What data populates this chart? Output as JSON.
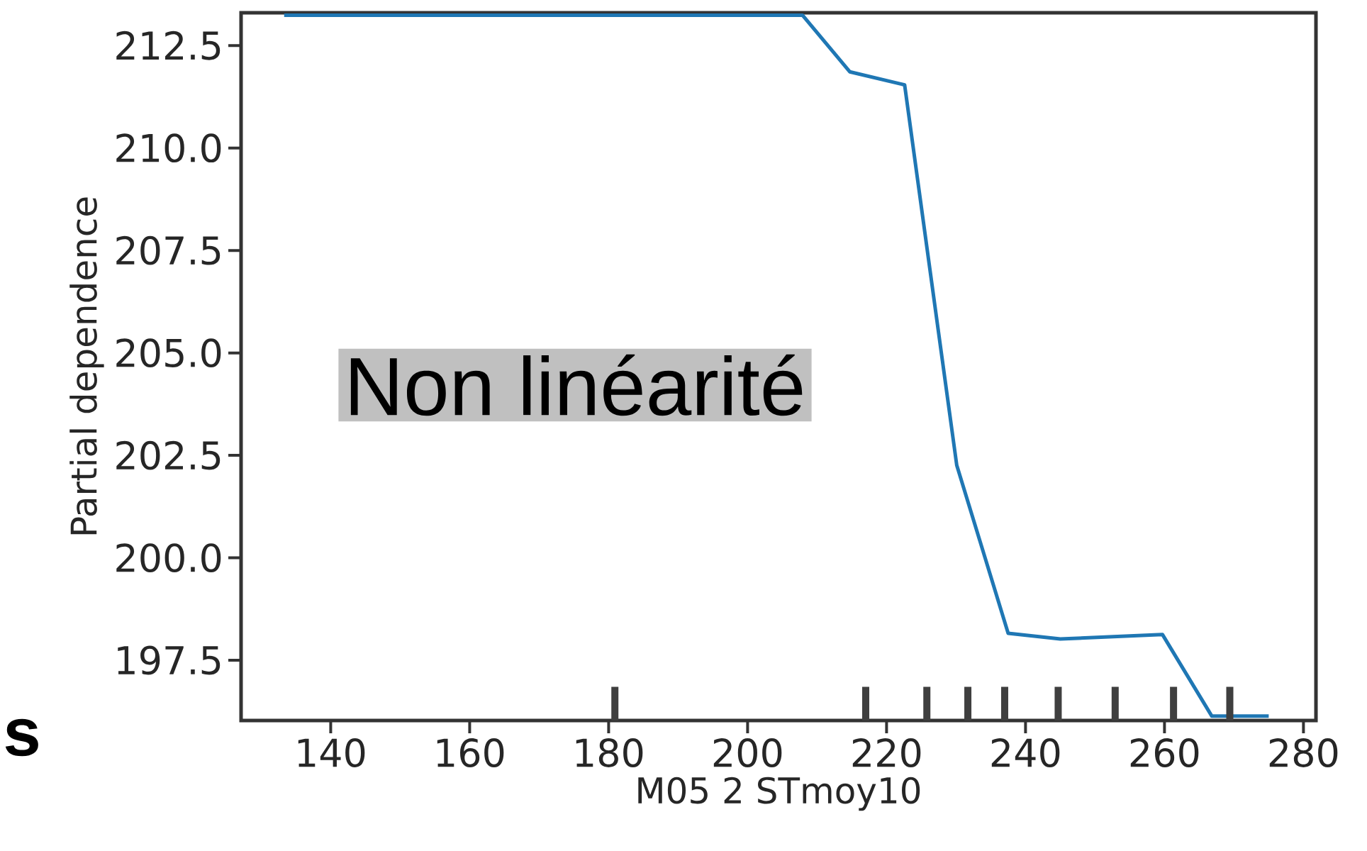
{
  "chart_data": {
    "type": "line",
    "xlabel": "M05 2 STmoy10",
    "ylabel": "Partial dependence",
    "xlim": [
      127.1,
      281.8
    ],
    "ylim": [
      196.03,
      213.3
    ],
    "xticks": [
      140,
      160,
      180,
      200,
      220,
      240,
      260,
      280
    ],
    "yticks": [
      197.5,
      {
        "value": 200,
        "label": "200.0"
      },
      202.5,
      {
        "value": 205,
        "label": "205.0"
      },
      207.5,
      {
        "value": 210,
        "label": "210.0"
      },
      212.5
    ],
    "series": [
      {
        "color": "#1f77b4",
        "x": [
          133.3,
          207.9,
          214.7,
          222.6,
          230.1,
          237.5,
          245.0,
          259.7,
          266.8,
          275.0
        ],
        "values": [
          213.24,
          213.24,
          211.86,
          211.54,
          202.26,
          198.16,
          198.02,
          198.13,
          196.14,
          196.14
        ]
      },
      {
        "type": "bar",
        "color": "#3f3f3f",
        "x": [
          180.9,
          217.0,
          225.8,
          231.7,
          237.0,
          244.7,
          252.9,
          261.3,
          269.4
        ],
        "values": [
          196.85,
          196.85,
          196.85,
          196.85,
          196.85,
          196.85,
          196.85,
          196.85,
          196.85
        ]
      }
    ],
    "annotations": [
      "Non linéarité",
      "s"
    ]
  }
}
